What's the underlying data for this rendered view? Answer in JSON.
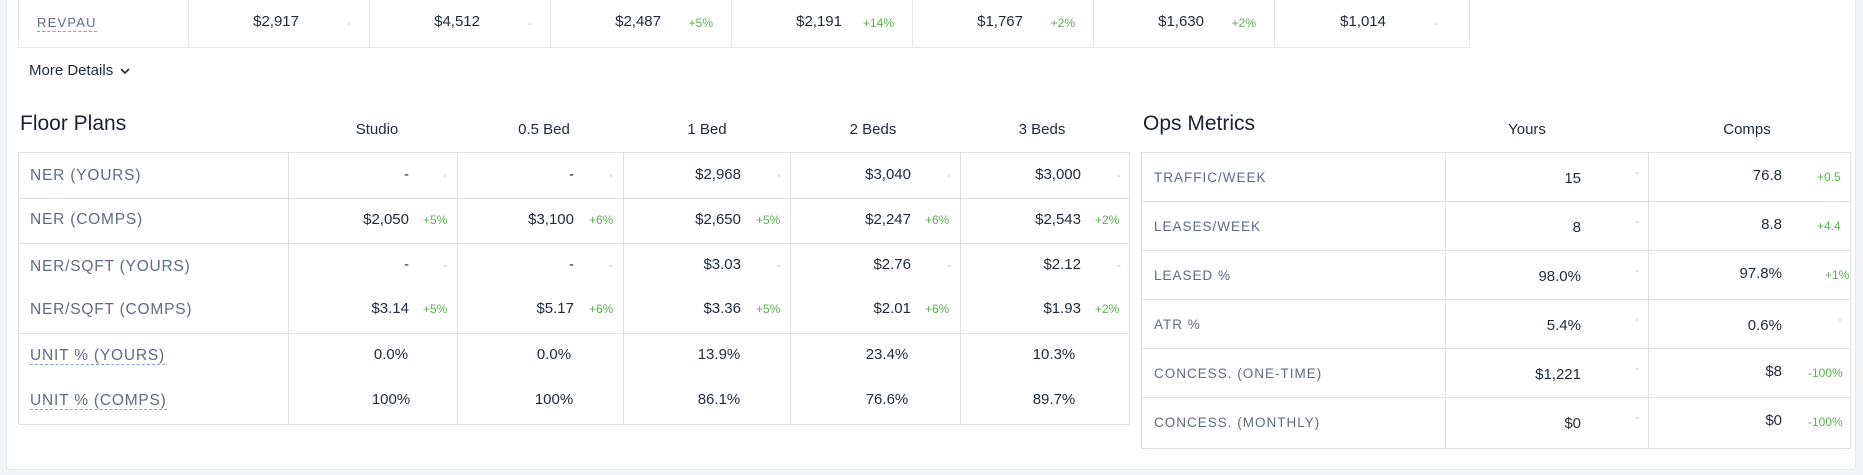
{
  "revpau": {
    "label": "REVPAU",
    "cells": [
      {
        "value": "$2,917",
        "change": "-"
      },
      {
        "value": "$4,512",
        "change": "-"
      },
      {
        "value": "$2,487",
        "change": "+5%"
      },
      {
        "value": "$2,191",
        "change": "+14%"
      },
      {
        "value": "$1,767",
        "change": "+2%"
      },
      {
        "value": "$1,630",
        "change": "+2%"
      },
      {
        "value": "$1,014",
        "change": "-"
      }
    ]
  },
  "more_details": {
    "label": "More Details"
  },
  "floor_plans": {
    "title": "Floor Plans",
    "columns": [
      "Studio",
      "0.5 Bed",
      "1 Bed",
      "2 Beds",
      "3 Beds"
    ],
    "rows": {
      "ner_yours": {
        "label": "NER (YOURS)",
        "cells": [
          {
            "value": "-",
            "change": "-"
          },
          {
            "value": "-",
            "change": "-"
          },
          {
            "value": "$2,968",
            "change": "-"
          },
          {
            "value": "$3,040",
            "change": "-"
          },
          {
            "value": "$3,000",
            "change": "-"
          }
        ]
      },
      "ner_comps": {
        "label": "NER (COMPS)",
        "cells": [
          {
            "value": "$2,050",
            "change": "+5%"
          },
          {
            "value": "$3,100",
            "change": "+6%"
          },
          {
            "value": "$2,650",
            "change": "+5%"
          },
          {
            "value": "$2,247",
            "change": "+6%"
          },
          {
            "value": "$2,543",
            "change": "+2%"
          }
        ]
      },
      "nersqft_yours": {
        "label": "NER/SQFT (YOURS)",
        "cells": [
          {
            "value": "-",
            "change": "-"
          },
          {
            "value": "-",
            "change": "-"
          },
          {
            "value": "$3.03",
            "change": "-"
          },
          {
            "value": "$2.76",
            "change": "-"
          },
          {
            "value": "$2.12",
            "change": "-"
          }
        ]
      },
      "nersqft_comps": {
        "label": "NER/SQFT (COMPS)",
        "cells": [
          {
            "value": "$3.14",
            "change": "+5%"
          },
          {
            "value": "$5.17",
            "change": "+6%"
          },
          {
            "value": "$3.36",
            "change": "+5%"
          },
          {
            "value": "$2.01",
            "change": "+6%"
          },
          {
            "value": "$1.93",
            "change": "+2%"
          }
        ]
      },
      "unit_yours": {
        "label": "UNIT % (YOURS)",
        "cells": [
          "0.0%",
          "0.0%",
          "13.9%",
          "23.4%",
          "10.3%"
        ]
      },
      "unit_comps": {
        "label": "UNIT % (COMPS)",
        "cells": [
          "100%",
          "100%",
          "86.1%",
          "76.6%",
          "89.7%"
        ]
      }
    }
  },
  "ops_metrics": {
    "title": "Ops Metrics",
    "columns": [
      "Yours",
      "Comps"
    ],
    "rows": [
      {
        "label": "TRAFFIC/WEEK",
        "yours": "15",
        "yours_change": "-",
        "comps": "76.8",
        "comps_change": "+0.5"
      },
      {
        "label": "LEASES/WEEK",
        "yours": "8",
        "yours_change": "-",
        "comps": "8.8",
        "comps_change": "+4.4"
      },
      {
        "label": "LEASED %",
        "yours": "98.0%",
        "yours_change": "-",
        "comps": "97.8%",
        "comps_change": "+1%"
      },
      {
        "label": "ATR %",
        "yours": "5.4%",
        "yours_change": "-",
        "comps": "0.6%",
        "comps_change": "-"
      },
      {
        "label": "CONCESS. (ONE-TIME)",
        "yours": "$1,221",
        "yours_change": "-",
        "comps": "$8",
        "comps_change": "-100%"
      },
      {
        "label": "CONCESS. (MONTHLY)",
        "yours": "$0",
        "yours_change": "-",
        "comps": "$0",
        "comps_change": "-100%"
      }
    ]
  }
}
